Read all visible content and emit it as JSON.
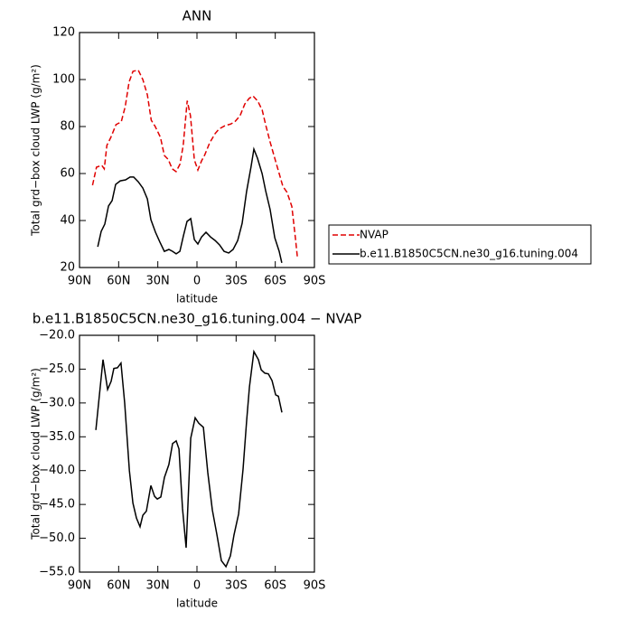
{
  "chart_data": [
    {
      "type": "line",
      "title": "ANN",
      "xlabel": "latitude",
      "ylabel": "Total grd−box cloud LWP (g/m²)",
      "xlim": [
        90,
        -90
      ],
      "xticks": [
        {
          "value": 90,
          "label": "90N"
        },
        {
          "value": 60,
          "label": "60N"
        },
        {
          "value": 30,
          "label": "30N"
        },
        0,
        {
          "value": -30,
          "label": "30S"
        },
        {
          "value": -60,
          "label": "60S"
        },
        {
          "value": -90,
          "label": "90S"
        }
      ],
      "ylim": [
        20,
        120
      ],
      "yticks": [
        20,
        40,
        60,
        80,
        100,
        120
      ],
      "legend": true,
      "series": [
        {
          "name": "NVAP",
          "color": "#e00000",
          "dashed": true,
          "x": [
            80,
            77,
            73,
            71,
            69,
            66,
            62,
            58,
            55,
            52,
            49,
            45,
            41.5,
            38,
            35,
            32,
            28,
            25,
            22,
            19,
            16,
            13,
            10.5,
            7.5,
            5,
            2,
            -0.7,
            -3.5,
            -6,
            -9.7,
            -13.9,
            -17,
            -21.5,
            -25.6,
            -29,
            -33,
            -36.7,
            -40,
            -43,
            -46.6,
            -50,
            -52.6,
            -56,
            -59.6,
            -63,
            -65.8,
            -69,
            -72.7,
            -75.5,
            -77
          ],
          "values": [
            55,
            62.7,
            63.5,
            62,
            72,
            75.4,
            80.8,
            82,
            88.5,
            99,
            103.5,
            104,
            100,
            93.5,
            82.7,
            80,
            75.4,
            67.7,
            66,
            62,
            60.8,
            64,
            72,
            91,
            84.6,
            65.8,
            61.5,
            65.4,
            68,
            73,
            77,
            79,
            80.4,
            81,
            82,
            84.6,
            89.6,
            92,
            93,
            90.8,
            87,
            80.8,
            73.5,
            66.5,
            60,
            54.6,
            52,
            46,
            32,
            24.2
          ]
        },
        {
          "name": "b.e11.B1850C5CN.ne30_g16.tuning.004",
          "color": "#000000",
          "dashed": false,
          "x": [
            76,
            73.4,
            70.6,
            67.8,
            65,
            62.3,
            58.8,
            54.7,
            51.2,
            48.5,
            45,
            41.5,
            38,
            35.3,
            31.8,
            28.4,
            25,
            21.5,
            18.7,
            15.9,
            13.1,
            10.4,
            7.6,
            4.8,
            2,
            -0.7,
            -3.5,
            -6.9,
            -10.4,
            -13.9,
            -17.3,
            -20.8,
            -24.3,
            -27.7,
            -31.2,
            -34.6,
            -38,
            -41.5,
            -43.6,
            -46.4,
            -49.9,
            -52.6,
            -56.1,
            -59.6,
            -63,
            -65
          ],
          "values": [
            28.8,
            35.4,
            38.5,
            46.2,
            48.5,
            55.4,
            56.9,
            57.3,
            58.5,
            58.5,
            56.5,
            53.8,
            49.2,
            40.4,
            35,
            30.8,
            26.9,
            27.7,
            26.9,
            25.8,
            26.9,
            33.5,
            39.6,
            40.8,
            31.9,
            30,
            33,
            35,
            33,
            31.5,
            29.6,
            26.9,
            26.2,
            27.7,
            31.5,
            38.8,
            52.3,
            63,
            70.4,
            66.5,
            60,
            52.7,
            44.6,
            32.7,
            26.9,
            22
          ]
        }
      ]
    },
    {
      "type": "line",
      "title": "b.e11.B1850C5CN.ne30_g16.tuning.004 − NVAP",
      "xlabel": "latitude",
      "ylabel": "Total grd−box cloud LWP (g/m²)",
      "xlim": [
        90,
        -90
      ],
      "xticks": [
        {
          "value": 90,
          "label": "90N"
        },
        {
          "value": 60,
          "label": "60N"
        },
        {
          "value": 30,
          "label": "30N"
        },
        0,
        {
          "value": -30,
          "label": "30S"
        },
        {
          "value": -60,
          "label": "60S"
        },
        {
          "value": -90,
          "label": "90S"
        }
      ],
      "ylim": [
        -55,
        -20
      ],
      "yticks": [
        {
          "value": -55,
          "label": "−55.0"
        },
        {
          "value": -50,
          "label": "−50.0"
        },
        {
          "value": -45,
          "label": "−45.0"
        },
        {
          "value": -40,
          "label": "−40.0"
        },
        {
          "value": -35,
          "label": "−35.0"
        },
        {
          "value": -30,
          "label": "−30.0"
        },
        {
          "value": -25,
          "label": "−25.0"
        },
        {
          "value": -20,
          "label": "−20.0"
        }
      ],
      "legend": false,
      "series": [
        {
          "color": "#000000",
          "dashed": false,
          "x": [
            77.5,
            72,
            68.5,
            65.8,
            63.7,
            60.9,
            58.2,
            55.4,
            51.8,
            49.1,
            46.4,
            43.6,
            41.5,
            38.8,
            35.3,
            32.5,
            30.4,
            27.7,
            24.9,
            21.5,
            18.7,
            15.9,
            13.8,
            11.1,
            8.3,
            4.8,
            1.4,
            -1.4,
            -4.9,
            -8.3,
            -11.8,
            -15.3,
            -18.7,
            -22.2,
            -25.6,
            -28.4,
            -31.9,
            -35.3,
            -38.1,
            -40.2,
            -43.6,
            -47.1,
            -49.2,
            -52,
            -54.7,
            -57.5,
            -60.3,
            -62.4,
            -65.1
          ],
          "values": [
            -34.0,
            -23.6,
            -28.0,
            -26.8,
            -24.9,
            -24.8,
            -24.1,
            -30.0,
            -40.0,
            -44.8,
            -47.0,
            -48.3,
            -46.6,
            -46.0,
            -42.2,
            -43.8,
            -44.2,
            -43.9,
            -41.0,
            -39.1,
            -36.0,
            -35.6,
            -36.8,
            -45.6,
            -51.4,
            -35.2,
            -32.2,
            -33.0,
            -33.6,
            -40.3,
            -45.8,
            -49.5,
            -53.3,
            -54.2,
            -52.6,
            -49.5,
            -46.4,
            -39.8,
            -32.6,
            -27.6,
            -22.4,
            -23.6,
            -25.1,
            -25.6,
            -25.7,
            -26.7,
            -28.8,
            -29.0,
            -31.4
          ]
        }
      ]
    }
  ]
}
